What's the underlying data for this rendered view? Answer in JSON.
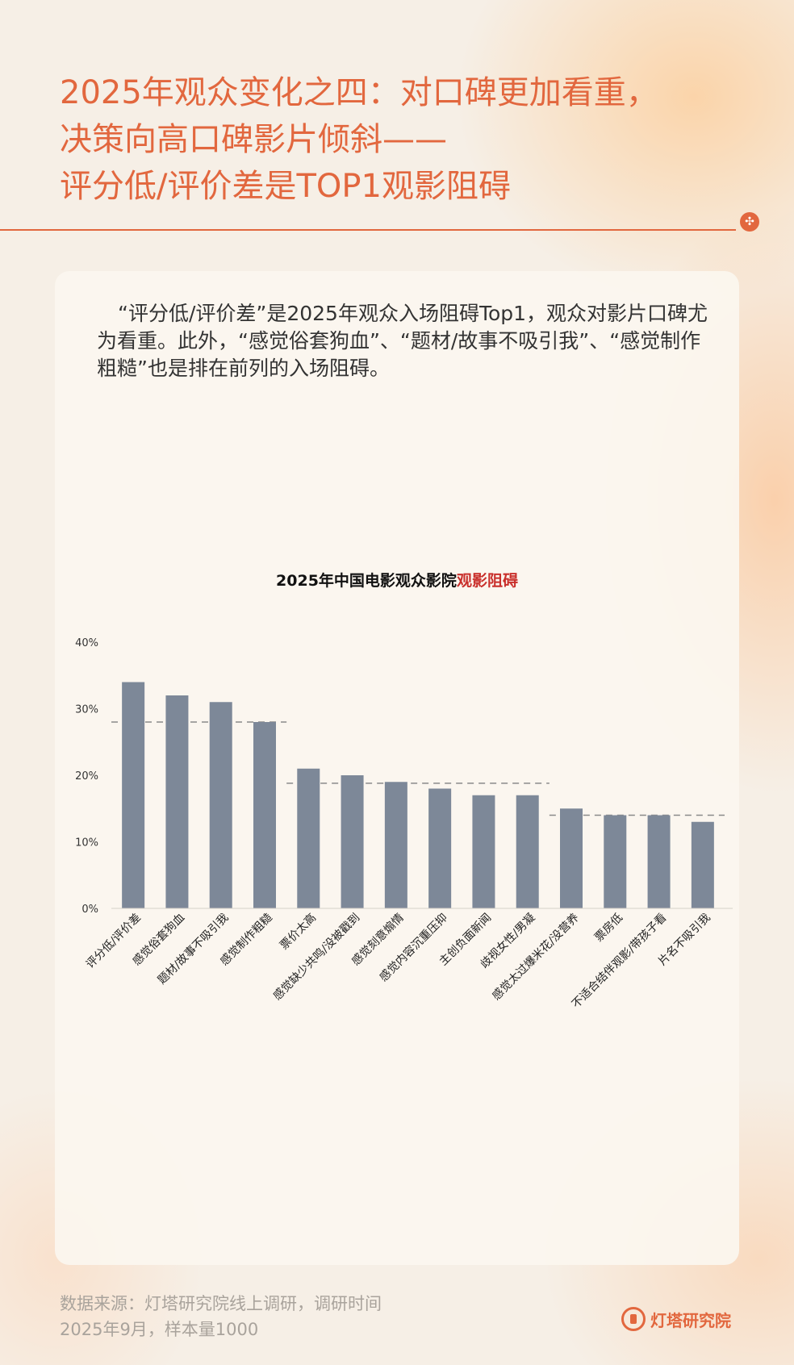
{
  "header": {
    "title_lines": [
      "2025年观众变化之四：对口碑更加看重，",
      "决策向高口碑影片倾斜——",
      "评分低/评价差是TOP1观影阻碍"
    ]
  },
  "intro_text": "“评分低/评价差”是2025年观众入场阻碍Top1，观众对影片口碑尤为看重。此外，“感觉俗套狗血”、“题材/故事不吸引我”、“感觉制作粗糙”也是排在前列的入场阻碍。",
  "footer": {
    "source_lines": [
      "数据来源：灯塔研究院线上调研，调研时间",
      "2025年9月，样本量1000"
    ],
    "brand": "灯塔研究院"
  },
  "colors": {
    "accent": "#e2673e",
    "bar": "#7d8898",
    "title_highlight": "#c9302c",
    "dashed": "#8a8a8a"
  },
  "chart_data": {
    "type": "bar",
    "title_prefix": "2025年中国电影观众影院",
    "title_highlight": "观影阻碍",
    "categories": [
      "评分低/评价差",
      "感觉俗套狗血",
      "题材/故事不吸引我",
      "感觉制作粗糙",
      "票价太高",
      "感觉缺少共鸣/没被戳到",
      "感觉刻意煽情",
      "感觉内容沉重压抑",
      "主创负面新闻",
      "歧视女性/男凝",
      "感觉太过爆米花/没营养",
      "票房低",
      "不适合结伴观影/带孩子看",
      "片名不吸引我"
    ],
    "values": [
      34,
      32,
      31,
      28,
      21,
      20,
      19,
      18,
      17,
      17,
      15,
      14,
      14,
      13
    ],
    "value_unit": "%",
    "ylim": [
      0,
      40
    ],
    "yticks": [
      0,
      10,
      20,
      30,
      40
    ],
    "ytick_labels": [
      "0%",
      "10%",
      "20%",
      "30%",
      "40%"
    ],
    "reference_lines": [
      {
        "from_index": 0,
        "to_index": 3,
        "value": 28
      },
      {
        "from_index": 4,
        "to_index": 9,
        "value": 18.8
      },
      {
        "from_index": 10,
        "to_index": 13,
        "value": 14
      }
    ],
    "grid": false,
    "legend": "none"
  }
}
